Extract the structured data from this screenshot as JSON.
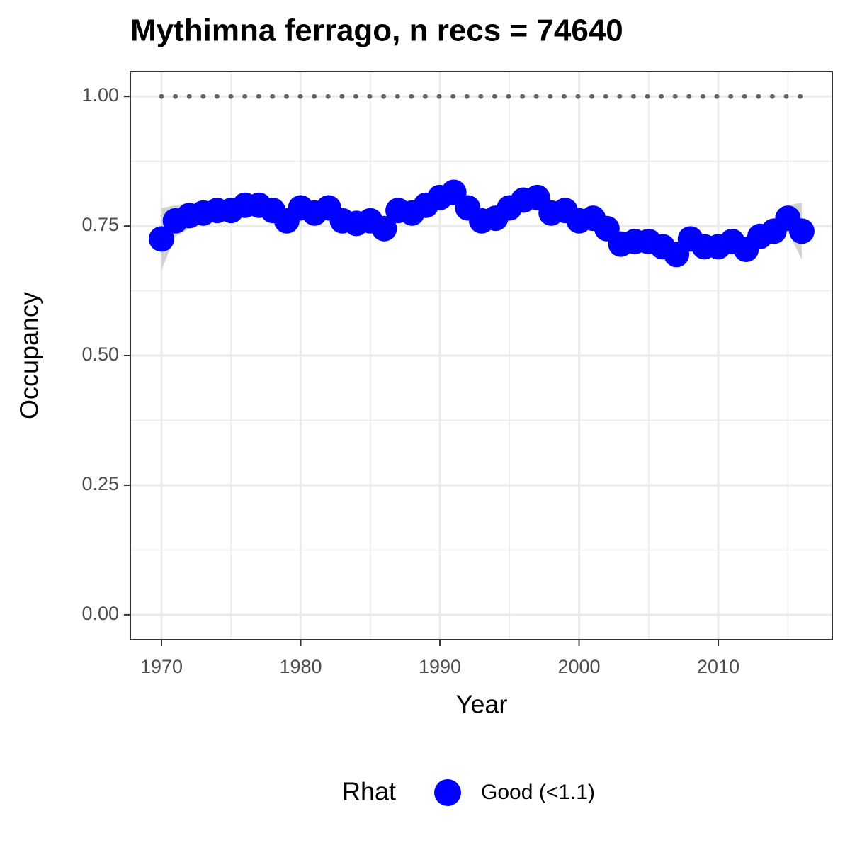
{
  "chart_data": {
    "type": "scatter",
    "title": "Mythimna ferrago, n recs = 74640",
    "x_label": "Year",
    "y_label": "Occupancy",
    "x": [
      1970,
      1971,
      1972,
      1973,
      1974,
      1975,
      1976,
      1977,
      1978,
      1979,
      1980,
      1981,
      1982,
      1983,
      1984,
      1985,
      1986,
      1987,
      1988,
      1989,
      1990,
      1991,
      1992,
      1993,
      1994,
      1995,
      1996,
      1997,
      1998,
      1999,
      2000,
      2001,
      2002,
      2003,
      2004,
      2005,
      2006,
      2007,
      2008,
      2009,
      2010,
      2011,
      2012,
      2013,
      2014,
      2015,
      2016
    ],
    "series": [
      {
        "name": "Good (<1.1)",
        "color": "#0000ff",
        "values": [
          0.725,
          0.76,
          0.77,
          0.775,
          0.78,
          0.78,
          0.79,
          0.79,
          0.78,
          0.76,
          0.785,
          0.775,
          0.785,
          0.76,
          0.755,
          0.76,
          0.745,
          0.78,
          0.775,
          0.79,
          0.805,
          0.815,
          0.785,
          0.76,
          0.765,
          0.785,
          0.8,
          0.805,
          0.775,
          0.78,
          0.76,
          0.765,
          0.745,
          0.715,
          0.72,
          0.72,
          0.71,
          0.695,
          0.725,
          0.71,
          0.71,
          0.72,
          0.705,
          0.73,
          0.74,
          0.765,
          0.74
        ]
      }
    ],
    "ribbon_lower": [
      0.665,
      0.73,
      0.745,
      0.76,
      0.765,
      0.765,
      0.775,
      0.775,
      0.765,
      0.745,
      0.77,
      0.76,
      0.77,
      0.745,
      0.74,
      0.745,
      0.73,
      0.765,
      0.76,
      0.775,
      0.79,
      0.8,
      0.77,
      0.745,
      0.75,
      0.77,
      0.785,
      0.79,
      0.76,
      0.765,
      0.745,
      0.75,
      0.73,
      0.7,
      0.705,
      0.705,
      0.695,
      0.68,
      0.71,
      0.695,
      0.695,
      0.705,
      0.69,
      0.715,
      0.725,
      0.74,
      0.685
    ],
    "ribbon_upper": [
      0.785,
      0.79,
      0.795,
      0.79,
      0.795,
      0.795,
      0.805,
      0.805,
      0.795,
      0.775,
      0.8,
      0.79,
      0.8,
      0.775,
      0.77,
      0.775,
      0.76,
      0.795,
      0.79,
      0.805,
      0.82,
      0.83,
      0.8,
      0.775,
      0.78,
      0.8,
      0.815,
      0.82,
      0.79,
      0.795,
      0.775,
      0.78,
      0.76,
      0.73,
      0.735,
      0.735,
      0.725,
      0.71,
      0.74,
      0.725,
      0.725,
      0.735,
      0.72,
      0.745,
      0.755,
      0.79,
      0.795
    ],
    "ribbon_color": "#d3d3d3",
    "reference_line": 1,
    "reference_color": "#666666",
    "xlim": [
      1967.76,
      2018.19
    ],
    "ylim": [
      -0.048,
      1.048
    ],
    "xticks": [
      1970,
      1980,
      1990,
      2000,
      2010
    ],
    "xminor": [
      1975,
      1985,
      1995,
      2005,
      2015
    ],
    "yticks": [
      {
        "value": 0,
        "label": "0.00"
      },
      {
        "value": 0.25,
        "label": "0.25"
      },
      {
        "value": 0.5,
        "label": "0.50"
      },
      {
        "value": 0.75,
        "label": "0.75"
      },
      {
        "value": 1,
        "label": "1.00"
      }
    ],
    "yminor": [
      0.125,
      0.375,
      0.625,
      0.875
    ],
    "grid": true,
    "legend_title": "Rhat",
    "legend_position": "bottom"
  }
}
